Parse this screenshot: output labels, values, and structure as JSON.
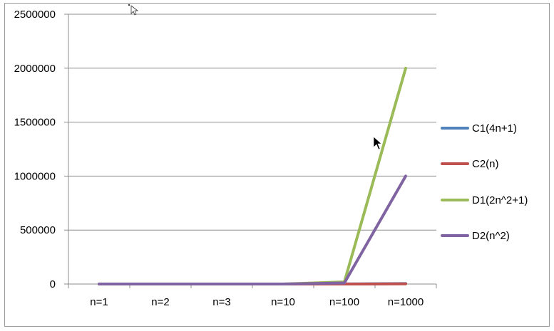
{
  "chart_data": {
    "type": "line",
    "categories": [
      "n=1",
      "n=2",
      "n=3",
      "n=10",
      "n=100",
      "n=1000"
    ],
    "ylim": [
      0,
      2500000
    ],
    "y_ticks": [
      "0",
      "500000",
      "1000000",
      "1500000",
      "2000000",
      "2500000"
    ],
    "grid": true,
    "legend_position": "right",
    "series": [
      {
        "name": "C1(4n+1)",
        "color": "#4f81bd",
        "values": [
          5,
          9,
          13,
          41,
          401,
          4001
        ]
      },
      {
        "name": "C2(n)",
        "color": "#c0504d",
        "values": [
          1,
          2,
          3,
          10,
          100,
          1000
        ]
      },
      {
        "name": "D1(2n^2+1)",
        "color": "#9bbb59",
        "values": [
          3,
          9,
          19,
          201,
          20001,
          2000001
        ]
      },
      {
        "name": "D2(n^2)",
        "color": "#8064a2",
        "values": [
          1,
          4,
          9,
          100,
          10000,
          1000000
        ]
      }
    ]
  }
}
